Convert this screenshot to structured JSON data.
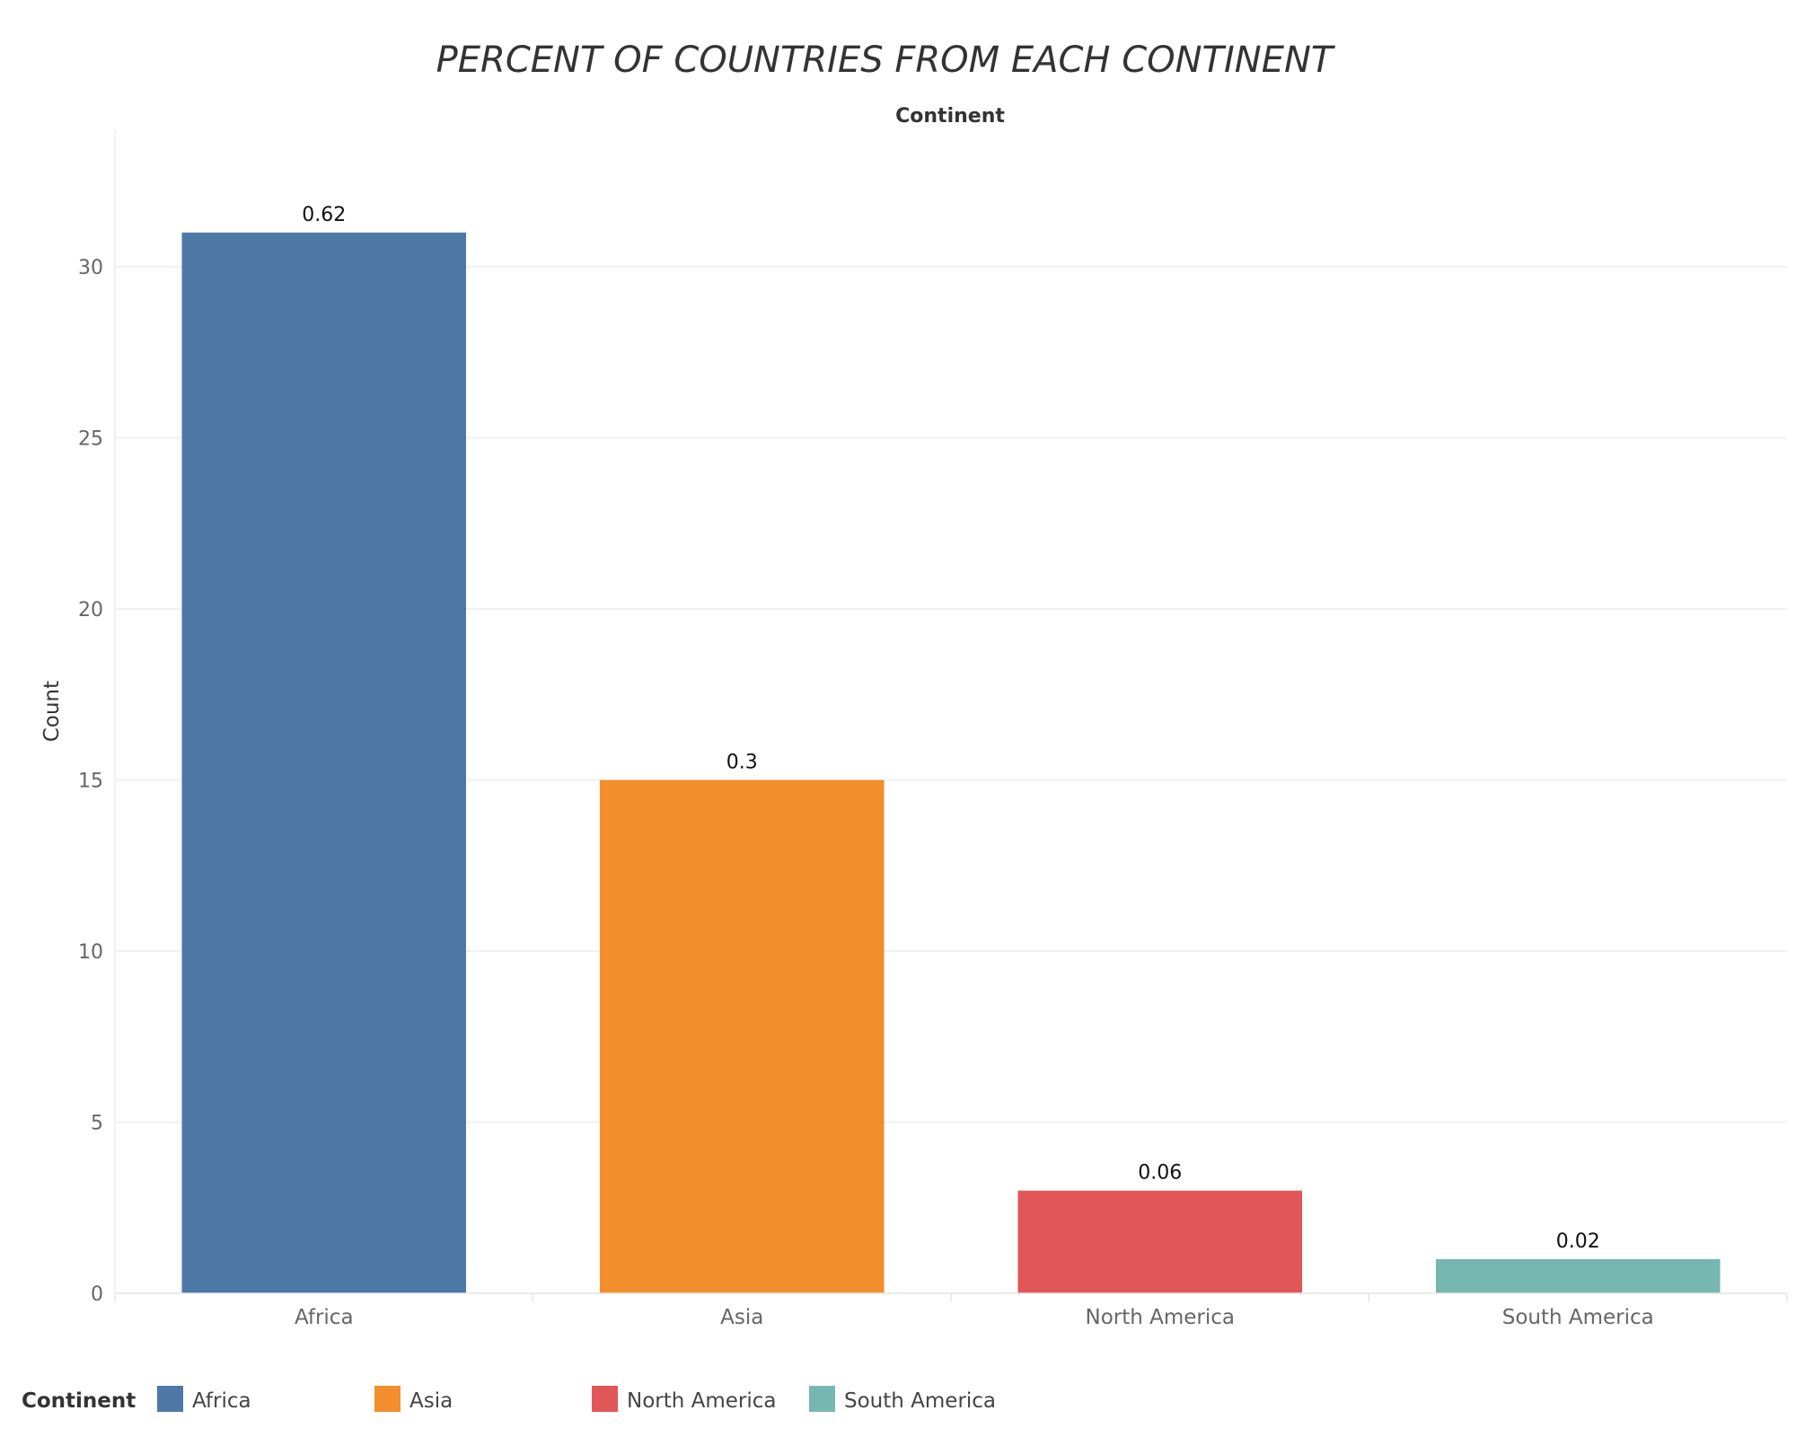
{
  "chart_data": {
    "type": "bar",
    "title": "PERCENT OF COUNTRIES FROM EACH CONTINENT",
    "column_header": "Continent",
    "xlabel": "",
    "ylabel": "Count",
    "categories": [
      "Africa",
      "Asia",
      "North America",
      "South America"
    ],
    "values": [
      31,
      15,
      3,
      1
    ],
    "data_labels": [
      "0.62",
      "0.3",
      "0.06",
      "0.02"
    ],
    "colors": [
      "#4e79a7",
      "#f28e2b",
      "#e15759",
      "#76b7b2"
    ],
    "ylim": [
      0,
      34
    ],
    "yticks": [
      0,
      5,
      10,
      15,
      20,
      25,
      30
    ],
    "grid": true,
    "legend": {
      "title": "Continent",
      "position": "bottom-left",
      "entries": [
        "Africa",
        "Asia",
        "North America",
        "South America"
      ]
    }
  }
}
